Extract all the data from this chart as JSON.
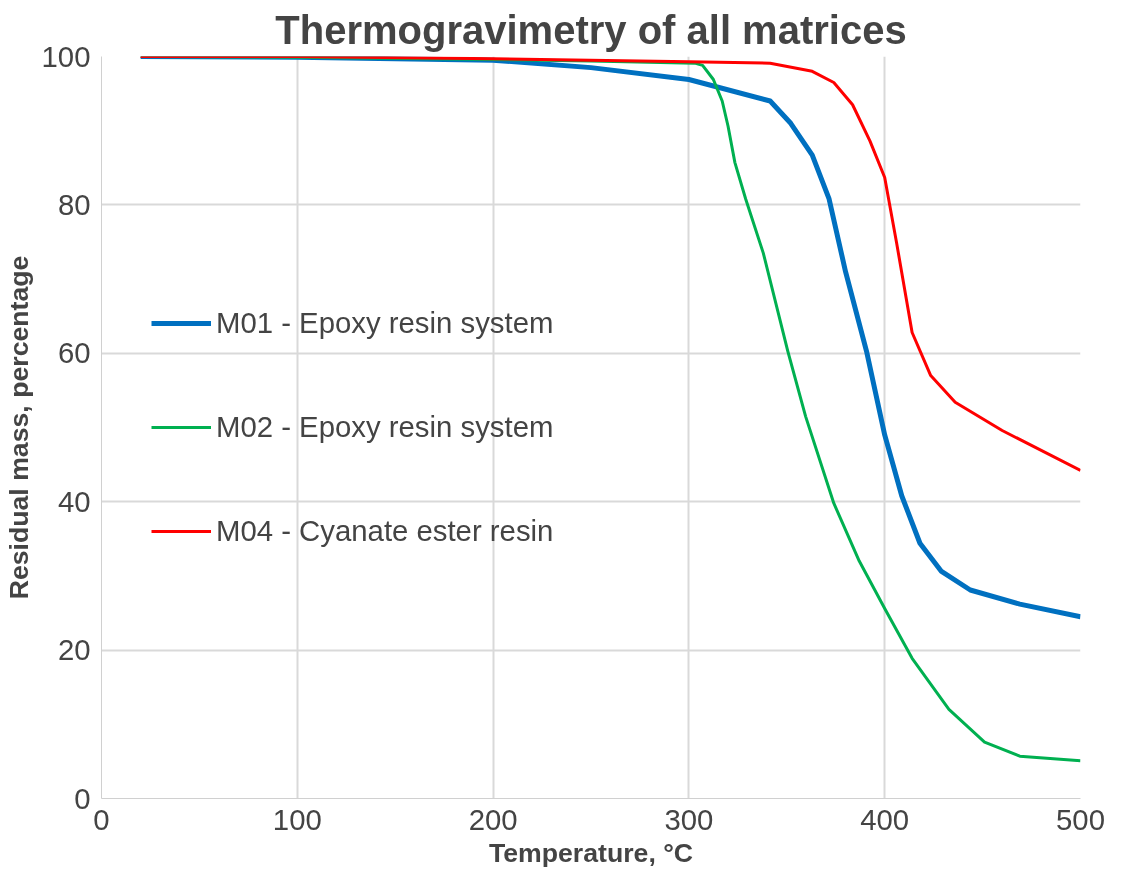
{
  "chart_data": {
    "type": "line",
    "title": "Thermogravimetry of all matrices",
    "xlabel": "Temperature, °C",
    "ylabel": "Residual mass, percentage",
    "xlim": [
      0,
      500
    ],
    "ylim": [
      0,
      100
    ],
    "xticks": [
      0,
      100,
      200,
      300,
      400,
      500
    ],
    "yticks": [
      0,
      20,
      40,
      60,
      80,
      100
    ],
    "grid": true,
    "legend": "left",
    "marker": "none",
    "line_style": "solid",
    "series": [
      {
        "name": "M01 - Epoxy resin system",
        "color": "#0070c0",
        "x": [
          20,
          100,
          200,
          250,
          300,
          341.5,
          352,
          363,
          371.6,
          380,
          390.7,
          400,
          408.7,
          418,
          429,
          443.7,
          469,
          500
        ],
        "values": [
          100,
          99.9,
          99.5,
          98.5,
          96.9,
          94,
          91,
          86.7,
          80.8,
          71,
          60.3,
          49,
          40.8,
          34.4,
          30.6,
          28.1,
          26.2,
          24.5
        ]
      },
      {
        "name": "M02 - Epoxy resin system",
        "color": "#00b050",
        "x": [
          20,
          100,
          200,
          250,
          303,
          307,
          312.5,
          317,
          320,
          323.5,
          329,
          338,
          350.5,
          359.6,
          374,
          387,
          400,
          414,
          432.8,
          451,
          469,
          500
        ],
        "values": [
          100,
          99.9,
          99.6,
          99.4,
          99.1,
          98.8,
          96.9,
          94,
          90.6,
          85.7,
          80.8,
          73.5,
          60.3,
          51.5,
          39.8,
          32,
          25.6,
          18.9,
          12,
          7.6,
          5.7,
          5.1
        ]
      },
      {
        "name": "M04 - Cyanate ester resin",
        "color": "#ff0000",
        "x": [
          20,
          100,
          200,
          300,
          341.5,
          363,
          374,
          383.6,
          392.5,
          400,
          406,
          414,
          423.5,
          436,
          460,
          500
        ],
        "values": [
          100,
          100,
          99.7,
          99.3,
          99.1,
          98,
          96.5,
          93.5,
          88.6,
          83.7,
          75,
          62.8,
          57,
          53.4,
          49.6,
          44.2
        ]
      }
    ]
  }
}
